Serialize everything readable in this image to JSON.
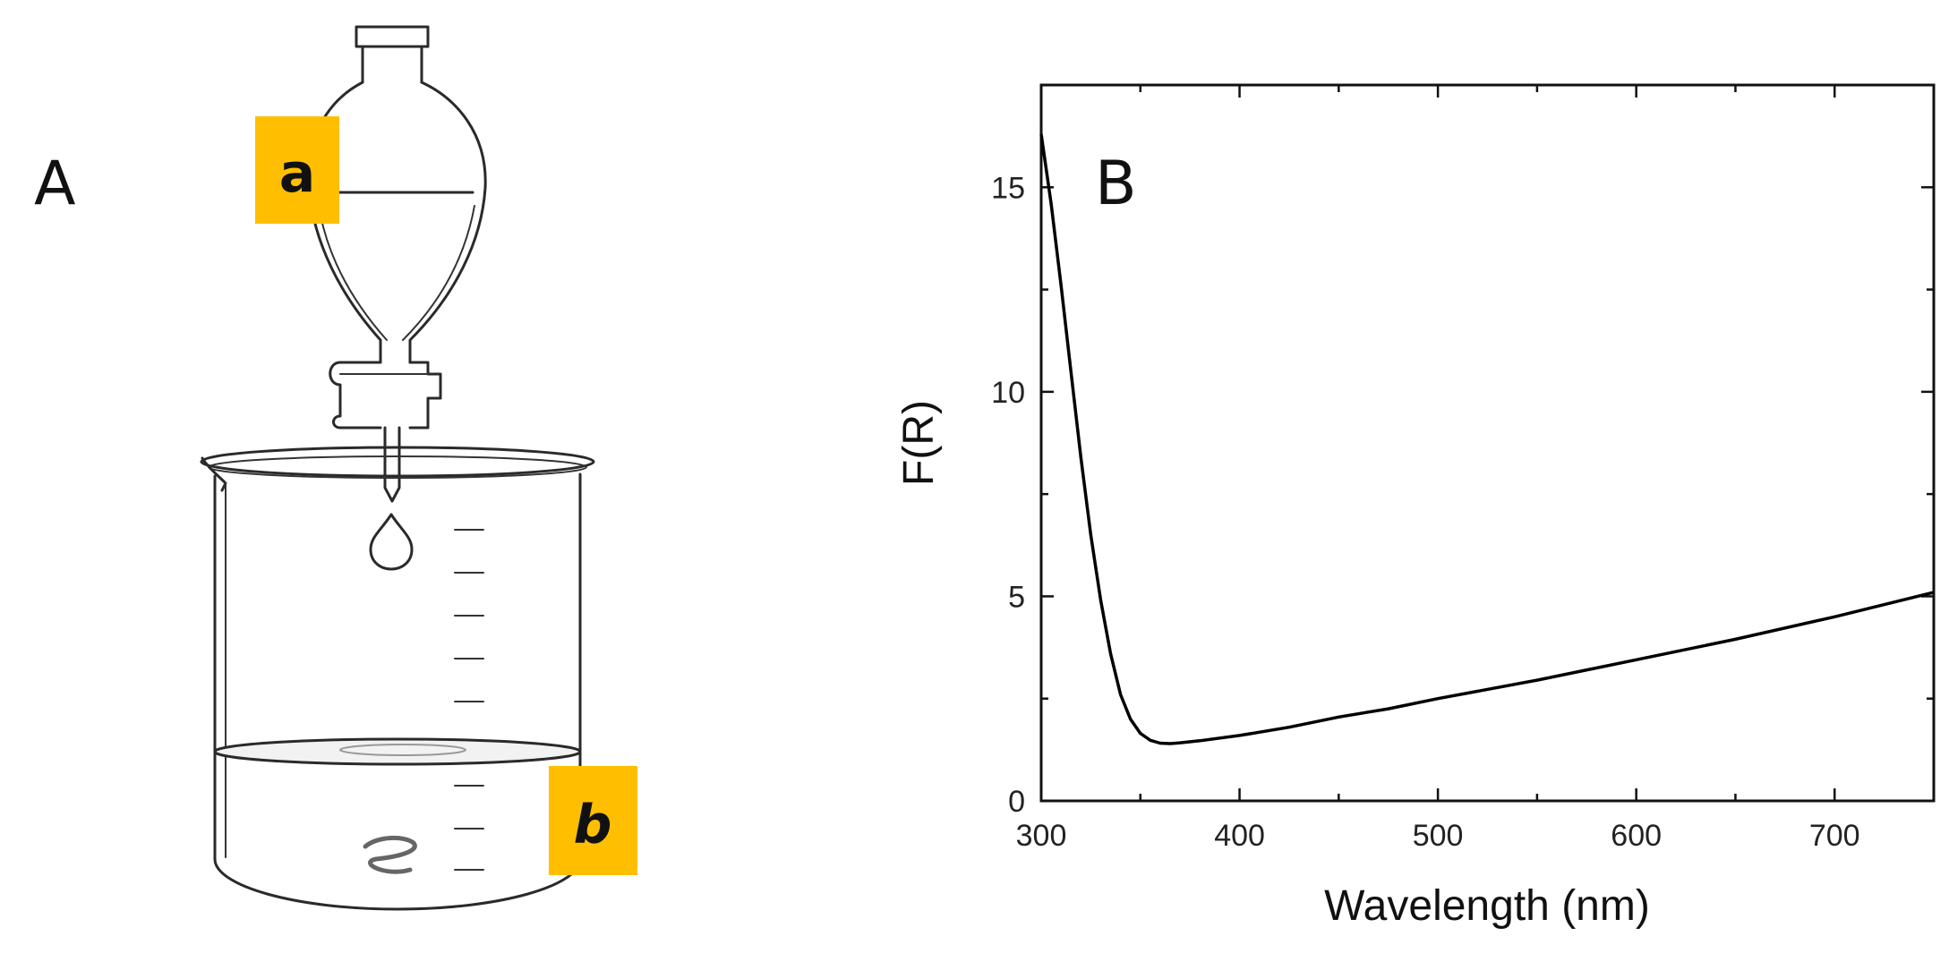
{
  "panel_a": {
    "label": "A",
    "label_top": "a",
    "label_bottom": "b",
    "label_box_color": "#FFBF00"
  },
  "panel_b": {
    "label": "B"
  },
  "chart_data": {
    "type": "line",
    "title": "",
    "xlabel": "Wavelength (nm)",
    "ylabel": "F(R)",
    "xlim": [
      300,
      750
    ],
    "ylim": [
      0,
      17.5
    ],
    "xticks": [
      300,
      400,
      500,
      600,
      700
    ],
    "yticks": [
      0,
      5,
      10,
      15
    ],
    "grid": false,
    "line_color": "#000000",
    "series": [
      {
        "x": [
          300,
          305,
          310,
          315,
          320,
          325,
          330,
          335,
          340,
          345,
          350,
          355,
          360,
          365,
          370,
          380,
          400,
          425,
          450,
          475,
          500,
          550,
          600,
          650,
          700,
          750
        ],
        "y": [
          16.3,
          14.6,
          12.6,
          10.5,
          8.4,
          6.5,
          4.9,
          3.6,
          2.6,
          2.0,
          1.65,
          1.48,
          1.41,
          1.4,
          1.42,
          1.47,
          1.6,
          1.8,
          2.05,
          2.25,
          2.5,
          2.95,
          3.45,
          3.95,
          4.5,
          5.1
        ]
      }
    ]
  }
}
